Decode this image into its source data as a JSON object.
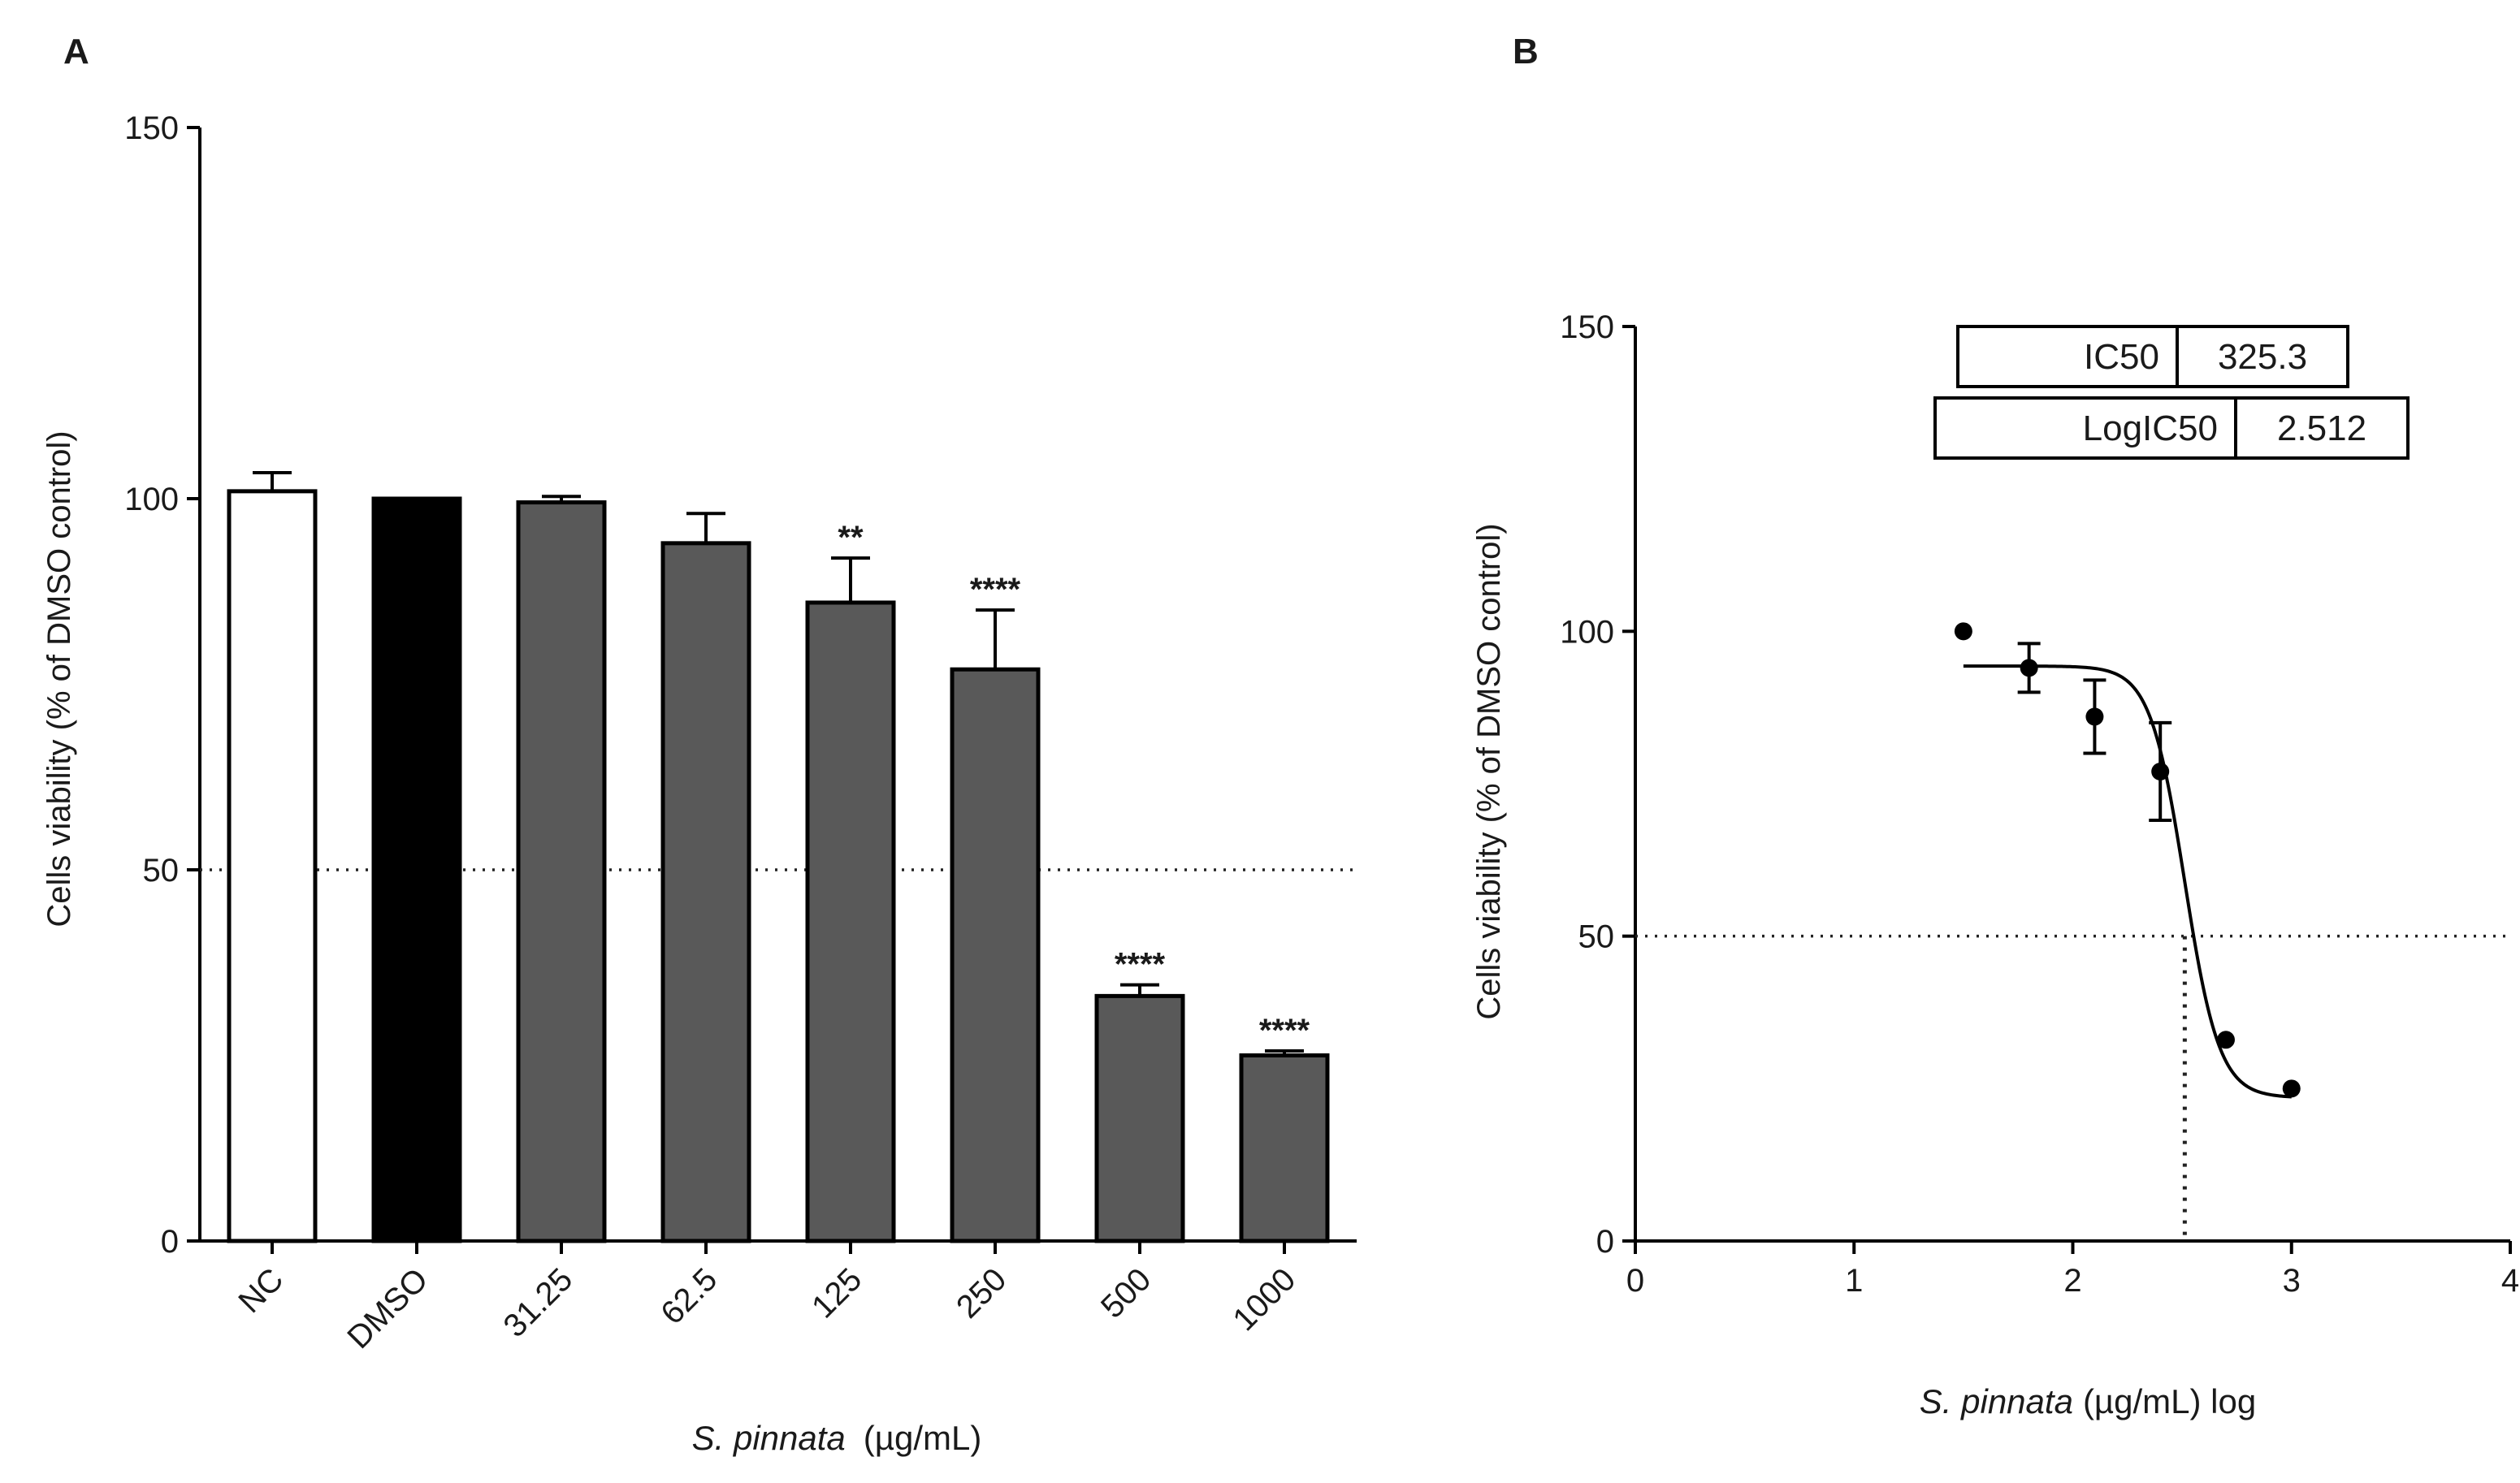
{
  "chart_data": [
    {
      "panel": "A",
      "type": "bar",
      "ylabel": "Cells viability (% of DMSO control)",
      "xlabel": {
        "italic": "S. pinnata",
        "rest": "(µg/mL)"
      },
      "ylim": [
        0,
        150
      ],
      "yticks": [
        0,
        50,
        100,
        150
      ],
      "reference_line": 50,
      "categories": [
        "NC",
        "DMSO",
        "31.25",
        "62.5",
        "125",
        "250",
        "500",
        "1000"
      ],
      "values": [
        101,
        100,
        99.5,
        94,
        86,
        77,
        33,
        25
      ],
      "errors": [
        2.5,
        0,
        0.8,
        4,
        6,
        8,
        1.5,
        0.6
      ],
      "fills": [
        "#ffffff",
        "#000000",
        "#595959",
        "#595959",
        "#595959",
        "#595959",
        "#595959",
        "#595959"
      ],
      "significance": [
        "",
        "",
        "",
        "",
        "**",
        "****",
        "****",
        "****"
      ]
    },
    {
      "panel": "B",
      "type": "scatter",
      "ylabel": "Cells viability (% of DMSO control)",
      "xlabel": {
        "italic": "S. pinnata",
        "rest": "(µg/mL) log"
      },
      "xlim": [
        0,
        4
      ],
      "xticks": [
        0,
        1,
        2,
        3,
        4
      ],
      "ylim": [
        0,
        150
      ],
      "yticks": [
        0,
        50,
        100,
        150
      ],
      "reference_line": 50,
      "points": [
        {
          "x": 1.5,
          "y": 100,
          "err": 0
        },
        {
          "x": 1.8,
          "y": 94,
          "err": 4
        },
        {
          "x": 2.1,
          "y": 86,
          "err": 6
        },
        {
          "x": 2.4,
          "y": 77,
          "err": 8
        },
        {
          "x": 2.7,
          "y": 33,
          "err": 0
        },
        {
          "x": 3.0,
          "y": 25,
          "err": 0
        }
      ],
      "fit": {
        "top": 94.3,
        "bottom": 23.5,
        "logIC50": 2.512,
        "hillslope": -5.5,
        "x_range": [
          1.5,
          3.0
        ]
      },
      "results_table": [
        {
          "label": "IC50",
          "value": "325.3"
        },
        {
          "label": "LogIC50",
          "value": "2.512"
        }
      ]
    }
  ]
}
